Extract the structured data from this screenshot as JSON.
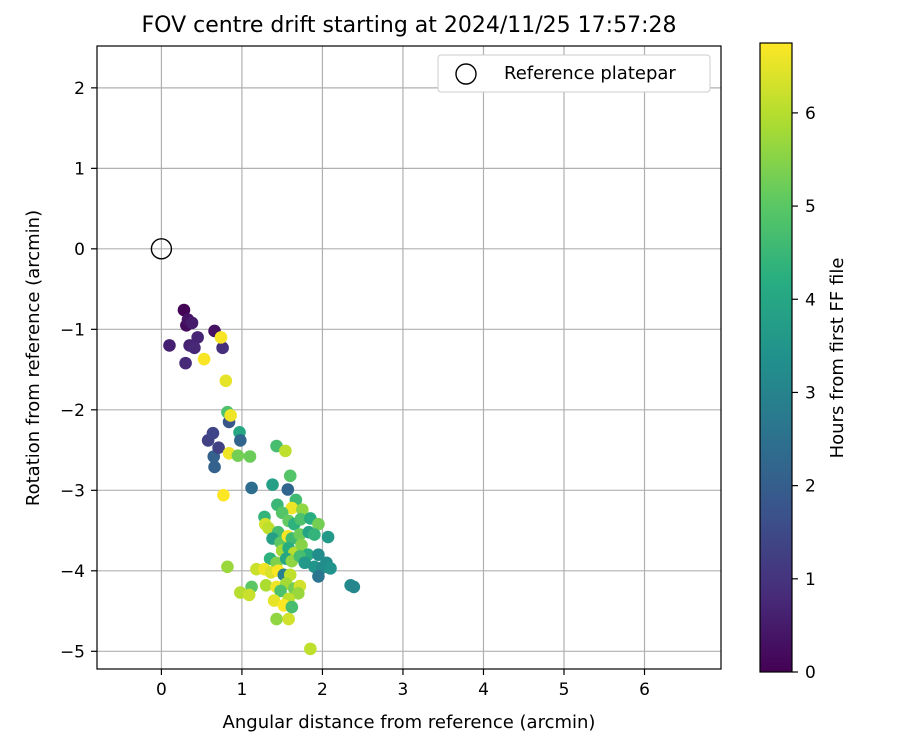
{
  "chart_data": {
    "type": "scatter",
    "title": "FOV centre drift starting at 2024/11/25 17:57:28",
    "xlabel": "Angular distance from reference (arcmin)",
    "ylabel": "Rotation from reference (arcmin)",
    "xlim": [
      -0.8,
      6.95
    ],
    "ylim": [
      -5.22,
      2.52
    ],
    "xticks": [
      0,
      1,
      2,
      3,
      4,
      5,
      6
    ],
    "yticks": [
      2,
      1,
      0,
      -1,
      -2,
      -3,
      -4,
      -5
    ],
    "grid": true,
    "legend": {
      "placement": "upper right",
      "entries": [
        "Reference platepar"
      ]
    },
    "reference_point": {
      "x": 0,
      "y": 0
    },
    "colorbar": {
      "label": "Hours from first FF file",
      "colormap": "viridis",
      "range": [
        0,
        6.75
      ],
      "ticks": [
        0,
        1,
        2,
        3,
        4,
        5,
        6
      ]
    },
    "series": [
      {
        "name": "Reference platepar",
        "points": [
          {
            "x": 0,
            "y": 0
          }
        ]
      },
      {
        "points": [
          {
            "x": 0.28,
            "y": -0.76,
            "h": 0.05
          },
          {
            "x": 0.31,
            "y": -0.95,
            "h": 0.2
          },
          {
            "x": 0.33,
            "y": -0.88,
            "h": 0.35
          },
          {
            "x": 0.38,
            "y": -0.92,
            "h": 0.5
          },
          {
            "x": 0.66,
            "y": -1.02,
            "h": 0.3
          },
          {
            "x": 0.1,
            "y": -1.2,
            "h": 0.6
          },
          {
            "x": 0.45,
            "y": -1.1,
            "h": 0.7
          },
          {
            "x": 0.35,
            "y": -1.2,
            "h": 0.65
          },
          {
            "x": 0.41,
            "y": -1.23,
            "h": 0.75
          },
          {
            "x": 0.3,
            "y": -1.42,
            "h": 0.8
          },
          {
            "x": 0.76,
            "y": -1.23,
            "h": 0.9
          },
          {
            "x": 0.53,
            "y": -1.37,
            "h": 6.7
          },
          {
            "x": 0.74,
            "y": -1.1,
            "h": 6.7
          },
          {
            "x": 0.8,
            "y": -1.64,
            "h": 6.5
          },
          {
            "x": 0.82,
            "y": -2.03,
            "h": 4.8
          },
          {
            "x": 0.84,
            "y": -2.15,
            "h": 1.8
          },
          {
            "x": 0.86,
            "y": -2.07,
            "h": 6.6
          },
          {
            "x": 0.58,
            "y": -2.38,
            "h": 1.3
          },
          {
            "x": 0.64,
            "y": -2.29,
            "h": 1.4
          },
          {
            "x": 0.97,
            "y": -2.28,
            "h": 4.0
          },
          {
            "x": 0.98,
            "y": -2.38,
            "h": 2.2
          },
          {
            "x": 0.65,
            "y": -2.58,
            "h": 2.1
          },
          {
            "x": 0.71,
            "y": -2.47,
            "h": 1.3
          },
          {
            "x": 0.66,
            "y": -2.71,
            "h": 2.1
          },
          {
            "x": 0.84,
            "y": -2.54,
            "h": 6.6
          },
          {
            "x": 0.95,
            "y": -2.57,
            "h": 5.3
          },
          {
            "x": 1.1,
            "y": -2.58,
            "h": 5.2
          },
          {
            "x": 1.12,
            "y": -2.97,
            "h": 2.4
          },
          {
            "x": 0.77,
            "y": -3.06,
            "h": 6.8
          },
          {
            "x": 1.43,
            "y": -2.45,
            "h": 4.7
          },
          {
            "x": 1.54,
            "y": -2.51,
            "h": 6.1
          },
          {
            "x": 1.6,
            "y": -2.82,
            "h": 4.9
          },
          {
            "x": 1.38,
            "y": -2.93,
            "h": 3.8
          },
          {
            "x": 1.57,
            "y": -2.99,
            "h": 2.2
          },
          {
            "x": 1.67,
            "y": -3.12,
            "h": 4.6
          },
          {
            "x": 1.44,
            "y": -3.18,
            "h": 4.5
          },
          {
            "x": 1.62,
            "y": -3.22,
            "h": 6.6
          },
          {
            "x": 1.75,
            "y": -3.24,
            "h": 5.6
          },
          {
            "x": 1.28,
            "y": -3.33,
            "h": 4.4
          },
          {
            "x": 1.5,
            "y": -3.28,
            "h": 4.9
          },
          {
            "x": 1.58,
            "y": -3.38,
            "h": 5.1
          },
          {
            "x": 1.65,
            "y": -3.42,
            "h": 4.3
          },
          {
            "x": 1.73,
            "y": -3.36,
            "h": 4.8
          },
          {
            "x": 1.85,
            "y": -3.35,
            "h": 4.2
          },
          {
            "x": 1.95,
            "y": -3.42,
            "h": 5.3
          },
          {
            "x": 1.29,
            "y": -3.42,
            "h": 6.3
          },
          {
            "x": 1.33,
            "y": -3.47,
            "h": 6.1
          },
          {
            "x": 1.45,
            "y": -3.52,
            "h": 4.7
          },
          {
            "x": 1.38,
            "y": -3.6,
            "h": 3.8
          },
          {
            "x": 1.48,
            "y": -3.65,
            "h": 5.0
          },
          {
            "x": 1.57,
            "y": -3.57,
            "h": 6.7
          },
          {
            "x": 1.62,
            "y": -3.6,
            "h": 4.6
          },
          {
            "x": 1.72,
            "y": -3.55,
            "h": 5.2
          },
          {
            "x": 1.83,
            "y": -3.52,
            "h": 3.9
          },
          {
            "x": 1.9,
            "y": -3.55,
            "h": 4.4
          },
          {
            "x": 2.07,
            "y": -3.58,
            "h": 3.6
          },
          {
            "x": 1.5,
            "y": -3.75,
            "h": 5.8
          },
          {
            "x": 1.58,
            "y": -3.72,
            "h": 4.2
          },
          {
            "x": 1.65,
            "y": -3.78,
            "h": 6.0
          },
          {
            "x": 1.74,
            "y": -3.68,
            "h": 5.5
          },
          {
            "x": 1.82,
            "y": -3.8,
            "h": 4.1
          },
          {
            "x": 1.95,
            "y": -3.8,
            "h": 3.3
          },
          {
            "x": 1.35,
            "y": -3.85,
            "h": 4.3
          },
          {
            "x": 1.43,
            "y": -3.9,
            "h": 5.4
          },
          {
            "x": 1.55,
            "y": -3.85,
            "h": 4.0
          },
          {
            "x": 1.62,
            "y": -3.88,
            "h": 5.6
          },
          {
            "x": 1.72,
            "y": -3.82,
            "h": 4.7
          },
          {
            "x": 1.78,
            "y": -3.9,
            "h": 3.6
          },
          {
            "x": 1.9,
            "y": -3.95,
            "h": 3.5
          },
          {
            "x": 2.0,
            "y": -3.96,
            "h": 3.2
          },
          {
            "x": 2.05,
            "y": -3.9,
            "h": 3.3
          },
          {
            "x": 2.1,
            "y": -3.97,
            "h": 3.4
          },
          {
            "x": 1.95,
            "y": -4.07,
            "h": 2.6
          },
          {
            "x": 0.82,
            "y": -3.95,
            "h": 5.7
          },
          {
            "x": 1.18,
            "y": -3.98,
            "h": 6.2
          },
          {
            "x": 1.28,
            "y": -3.98,
            "h": 6.6
          },
          {
            "x": 1.36,
            "y": -4.02,
            "h": 6.4
          },
          {
            "x": 1.45,
            "y": -4.0,
            "h": 6.9
          },
          {
            "x": 1.52,
            "y": -4.05,
            "h": 2.9
          },
          {
            "x": 1.6,
            "y": -4.05,
            "h": 6.1
          },
          {
            "x": 1.3,
            "y": -4.18,
            "h": 5.9
          },
          {
            "x": 1.43,
            "y": -4.2,
            "h": 6.6
          },
          {
            "x": 1.55,
            "y": -4.16,
            "h": 5.8
          },
          {
            "x": 1.65,
            "y": -4.22,
            "h": 5.3
          },
          {
            "x": 1.72,
            "y": -4.19,
            "h": 6.3
          },
          {
            "x": 1.12,
            "y": -4.2,
            "h": 5.0
          },
          {
            "x": 1.48,
            "y": -4.25,
            "h": 4.8
          },
          {
            "x": 1.7,
            "y": -4.28,
            "h": 5.7
          },
          {
            "x": 0.98,
            "y": -4.27,
            "h": 6.0
          },
          {
            "x": 1.09,
            "y": -4.3,
            "h": 6.2
          },
          {
            "x": 1.4,
            "y": -4.37,
            "h": 6.5
          },
          {
            "x": 1.58,
            "y": -4.35,
            "h": 6.1
          },
          {
            "x": 1.52,
            "y": -4.43,
            "h": 6.9
          },
          {
            "x": 1.62,
            "y": -4.45,
            "h": 4.7
          },
          {
            "x": 1.43,
            "y": -4.6,
            "h": 5.6
          },
          {
            "x": 1.58,
            "y": -4.6,
            "h": 6.3
          },
          {
            "x": 2.35,
            "y": -4.18,
            "h": 3.2
          },
          {
            "x": 2.39,
            "y": -4.2,
            "h": 3.1
          },
          {
            "x": 1.85,
            "y": -4.97,
            "h": 6.1
          }
        ]
      }
    ]
  }
}
